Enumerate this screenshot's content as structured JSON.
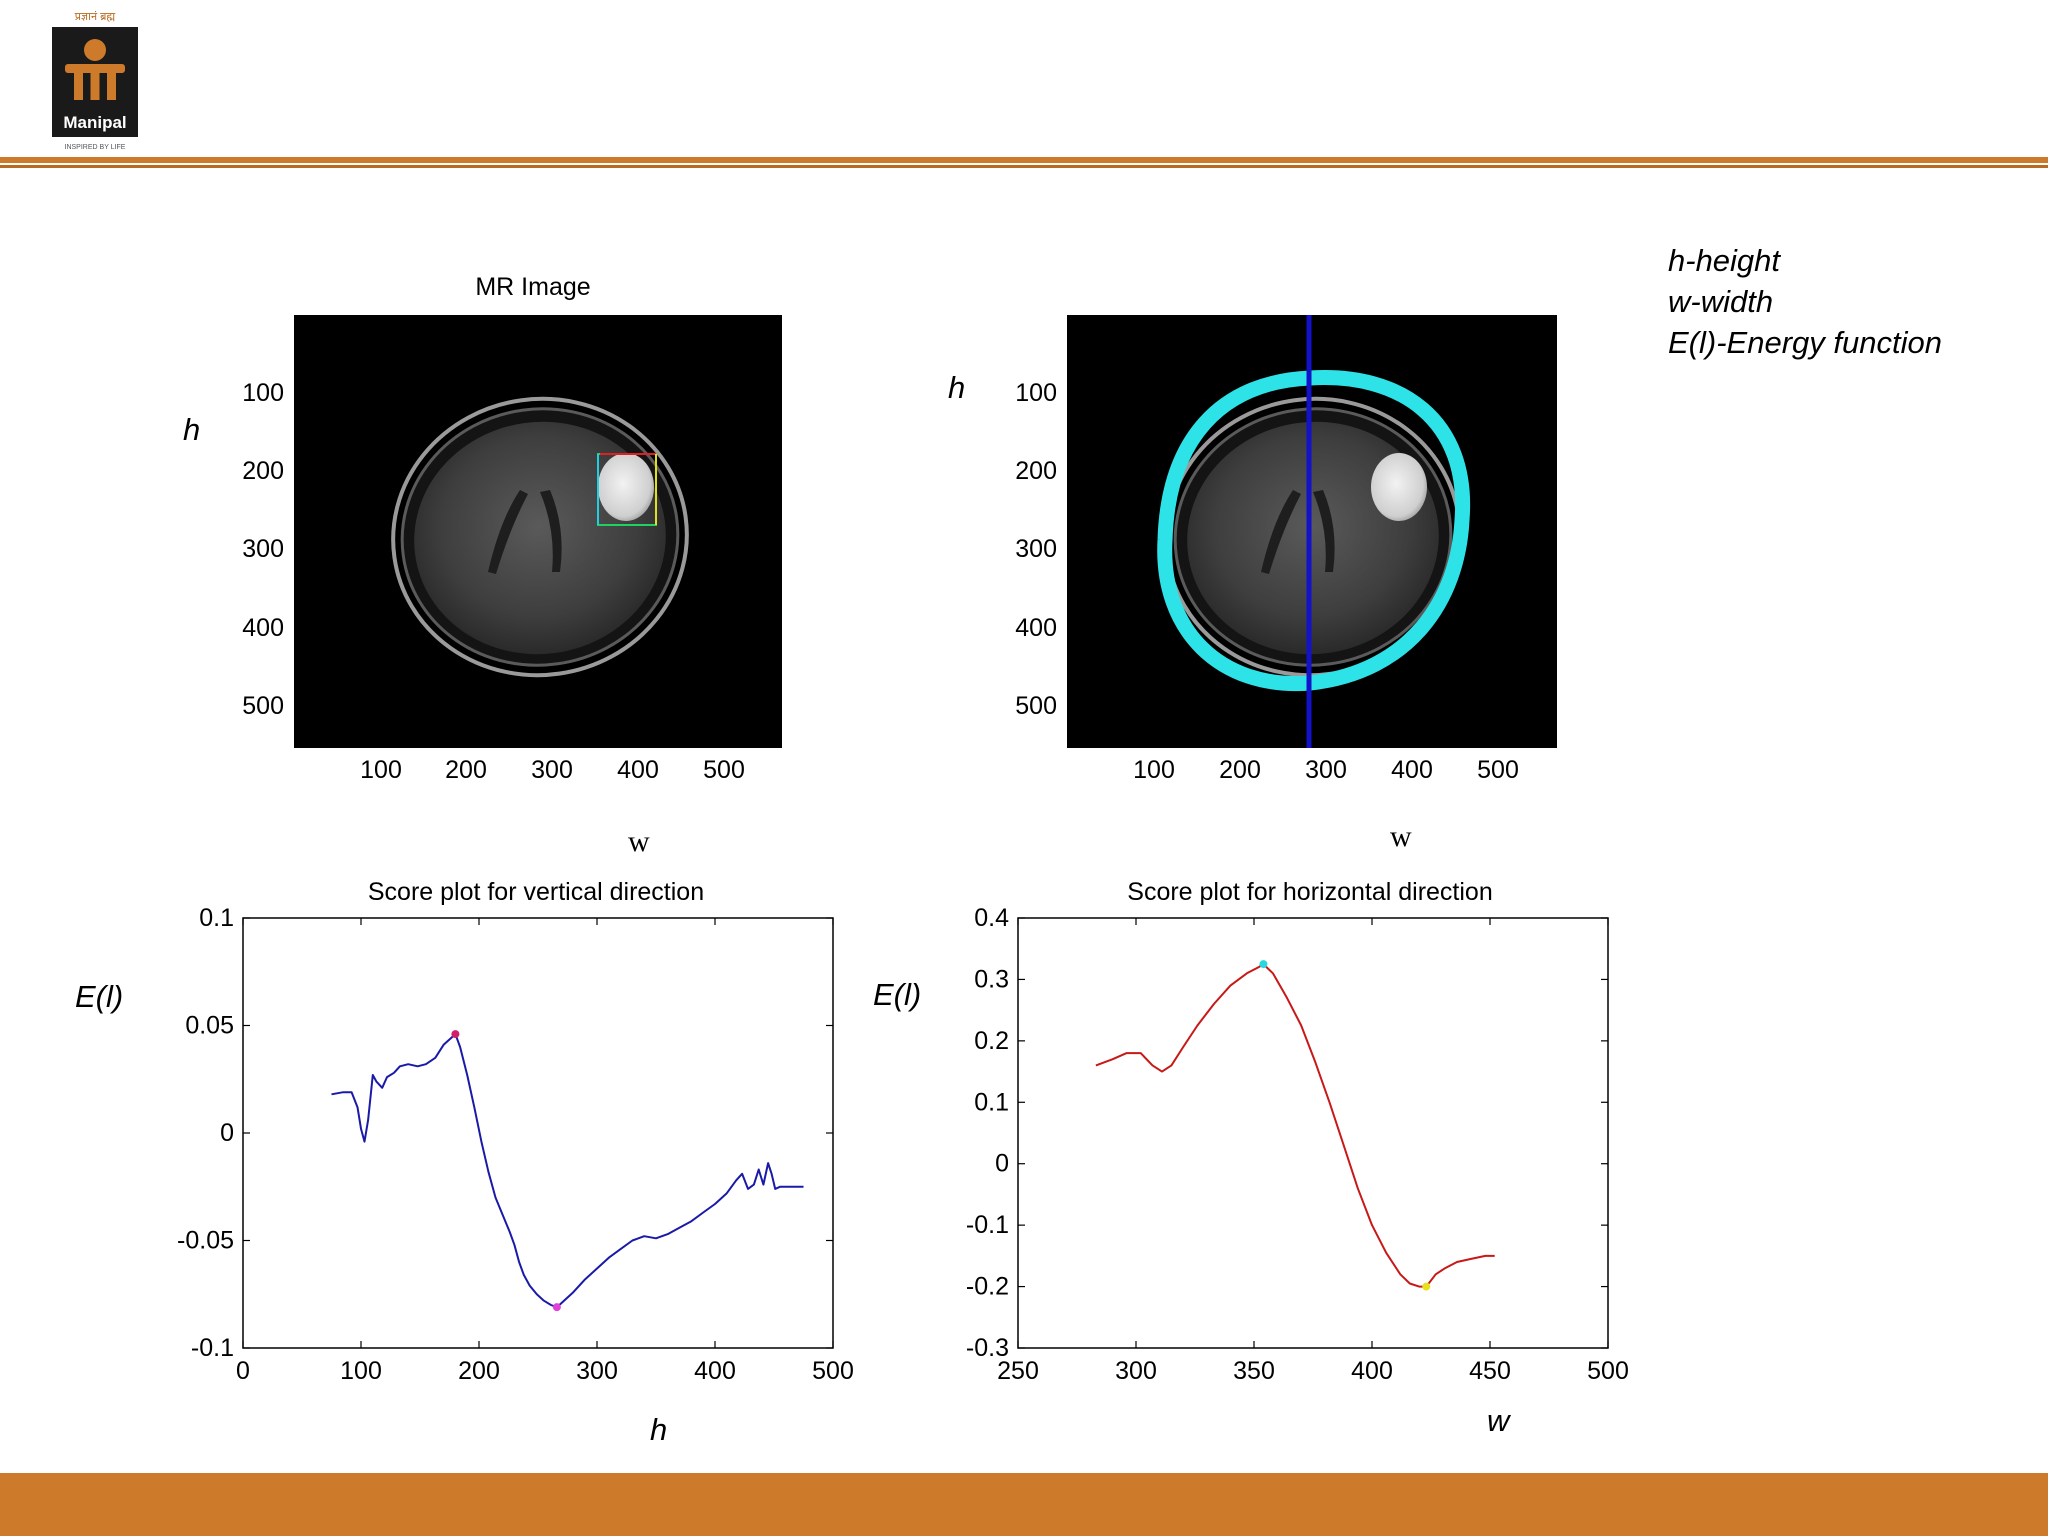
{
  "logo": {
    "org_name": "Manipal",
    "top_text": "प्रज्ञानं ब्रह्म",
    "tagline": "INSPIRED BY LIFE"
  },
  "colors": {
    "accent": "#cd7a2b",
    "accent_dark": "#b86a1f",
    "cyan_contour": "#2ee3e8",
    "blue_line": "#1212c8"
  },
  "notes": [
    "h-height",
    "w-width",
    "E(l)-Energy function"
  ],
  "panels": {
    "mr_image": {
      "title": "MR Image",
      "xticks": [
        "100",
        "200",
        "300",
        "400",
        "500"
      ],
      "yticks": [
        "100",
        "200",
        "300",
        "400",
        "500"
      ],
      "xlabel": "w",
      "ylabel": "h"
    },
    "segmented_image": {
      "title": "",
      "xticks": [
        "100",
        "200",
        "300",
        "400",
        "500"
      ],
      "yticks": [
        "100",
        "200",
        "300",
        "400",
        "500"
      ],
      "xlabel": "w",
      "ylabel": "h"
    }
  },
  "chart_data": [
    {
      "type": "line",
      "title": "Score plot for vertical direction",
      "xlabel": "h",
      "ylabel": "E(l)",
      "xlim": [
        0,
        500
      ],
      "ylim": [
        -0.1,
        0.1
      ],
      "xticks": [
        "0",
        "100",
        "200",
        "300",
        "400",
        "500"
      ],
      "yticks": [
        "0.1",
        "0.05",
        "0",
        "-0.05",
        "-0.1"
      ],
      "grid": false,
      "line_color": "#1a1aa8",
      "series": [
        {
          "x": [
            75,
            85,
            92,
            97,
            100,
            103,
            106,
            110,
            113,
            118,
            122,
            128,
            133,
            140,
            148,
            155,
            163,
            170,
            176,
            180,
            184,
            190,
            196,
            202,
            208,
            214,
            220,
            226,
            230,
            234,
            238,
            243,
            249,
            255,
            261,
            266,
            272,
            280,
            290,
            300,
            310,
            320,
            330,
            340,
            350,
            360,
            370,
            380,
            390,
            400,
            410,
            418,
            423,
            428,
            433,
            437,
            441,
            445,
            448,
            451,
            455,
            460,
            470,
            475
          ],
          "y": [
            0.018,
            0.019,
            0.019,
            0.012,
            0.002,
            -0.004,
            0.006,
            0.027,
            0.024,
            0.021,
            0.026,
            0.028,
            0.031,
            0.032,
            0.031,
            0.032,
            0.035,
            0.041,
            0.044,
            0.046,
            0.04,
            0.027,
            0.012,
            -0.004,
            -0.018,
            -0.03,
            -0.038,
            -0.046,
            -0.052,
            -0.06,
            -0.066,
            -0.071,
            -0.075,
            -0.078,
            -0.08,
            -0.081,
            -0.078,
            -0.074,
            -0.068,
            -0.063,
            -0.058,
            -0.054,
            -0.05,
            -0.048,
            -0.049,
            -0.047,
            -0.044,
            -0.041,
            -0.037,
            -0.033,
            -0.028,
            -0.022,
            -0.019,
            -0.026,
            -0.024,
            -0.017,
            -0.024,
            -0.014,
            -0.019,
            -0.026,
            -0.025,
            -0.025,
            -0.025,
            -0.025
          ]
        }
      ],
      "markers": [
        {
          "x": 180,
          "y": 0.046,
          "color": "#d0206a"
        },
        {
          "x": 266,
          "y": -0.081,
          "color": "#e040d8"
        }
      ]
    },
    {
      "type": "line",
      "title": "Score plot for horizontal direction",
      "xlabel": "w",
      "ylabel": "E(l)",
      "xlim": [
        250,
        500
      ],
      "ylim": [
        -0.3,
        0.4
      ],
      "xticks": [
        "250",
        "300",
        "350",
        "400",
        "450",
        "500"
      ],
      "yticks": [
        "0.4",
        "0.3",
        "0.2",
        "0.1",
        "0",
        "-0.1",
        "-0.2",
        "-0.3"
      ],
      "grid": false,
      "line_color": "#c81818",
      "series": [
        {
          "x": [
            283,
            290,
            296,
            302,
            307,
            311,
            315,
            320,
            326,
            333,
            340,
            347,
            352,
            354,
            358,
            364,
            370,
            376,
            382,
            388,
            394,
            400,
            406,
            412,
            416,
            420,
            423,
            427,
            431,
            436,
            442,
            448,
            452
          ],
          "y": [
            0.16,
            0.17,
            0.18,
            0.18,
            0.16,
            0.15,
            0.16,
            0.19,
            0.225,
            0.26,
            0.29,
            0.31,
            0.32,
            0.325,
            0.31,
            0.27,
            0.225,
            0.165,
            0.1,
            0.03,
            -0.04,
            -0.1,
            -0.145,
            -0.18,
            -0.195,
            -0.2,
            -0.2,
            -0.18,
            -0.17,
            -0.16,
            -0.155,
            -0.15,
            -0.15
          ]
        }
      ],
      "markers": [
        {
          "x": 354,
          "y": 0.325,
          "color": "#28d8e0"
        },
        {
          "x": 423,
          "y": -0.2,
          "color": "#e8e020"
        }
      ]
    }
  ]
}
